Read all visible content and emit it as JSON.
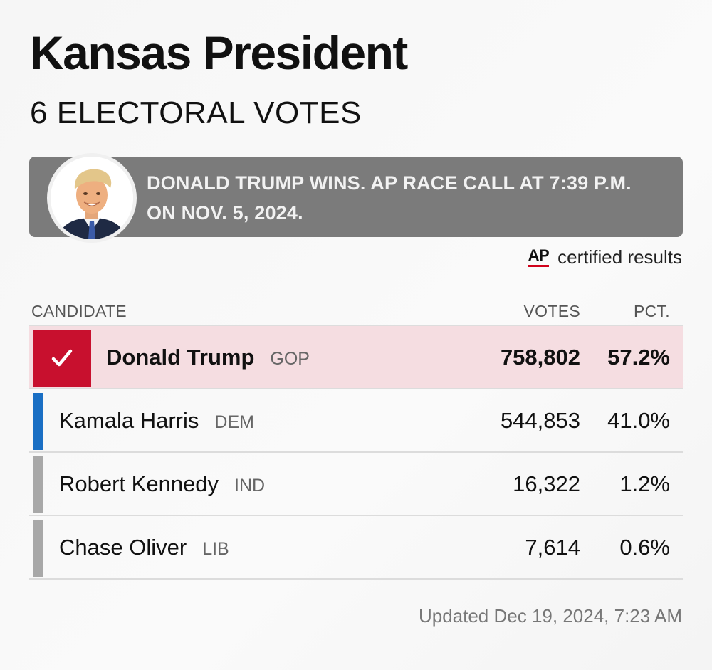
{
  "header": {
    "title": "Kansas President",
    "subtitle": "6 ELECTORAL VOTES"
  },
  "banner": {
    "text": "DONALD TRUMP WINS. AP RACE CALL AT 7:39 P.M. ON NOV. 5, 2024."
  },
  "source": {
    "logo": "AP",
    "label": "certified results"
  },
  "table": {
    "columns": {
      "candidate": "CANDIDATE",
      "votes": "VOTES",
      "pct": "PCT."
    },
    "rows": [
      {
        "name": "Donald Trump",
        "party": "GOP",
        "votes": "758,802",
        "pct": "57.2%",
        "color": "#c8102e",
        "winner": true
      },
      {
        "name": "Kamala Harris",
        "party": "DEM",
        "votes": "544,853",
        "pct": "41.0%",
        "color": "#1a6fc4",
        "winner": false
      },
      {
        "name": "Robert Kennedy",
        "party": "IND",
        "votes": "16,322",
        "pct": "1.2%",
        "color": "#a8a8a8",
        "winner": false
      },
      {
        "name": "Chase Oliver",
        "party": "LIB",
        "votes": "7,614",
        "pct": "0.6%",
        "color": "#a8a8a8",
        "winner": false
      }
    ]
  },
  "footer": {
    "updated": "Updated Dec 19, 2024, 7:23 AM"
  },
  "icons": {
    "winner_check": "checkmark-icon",
    "avatar": "candidate-photo"
  }
}
